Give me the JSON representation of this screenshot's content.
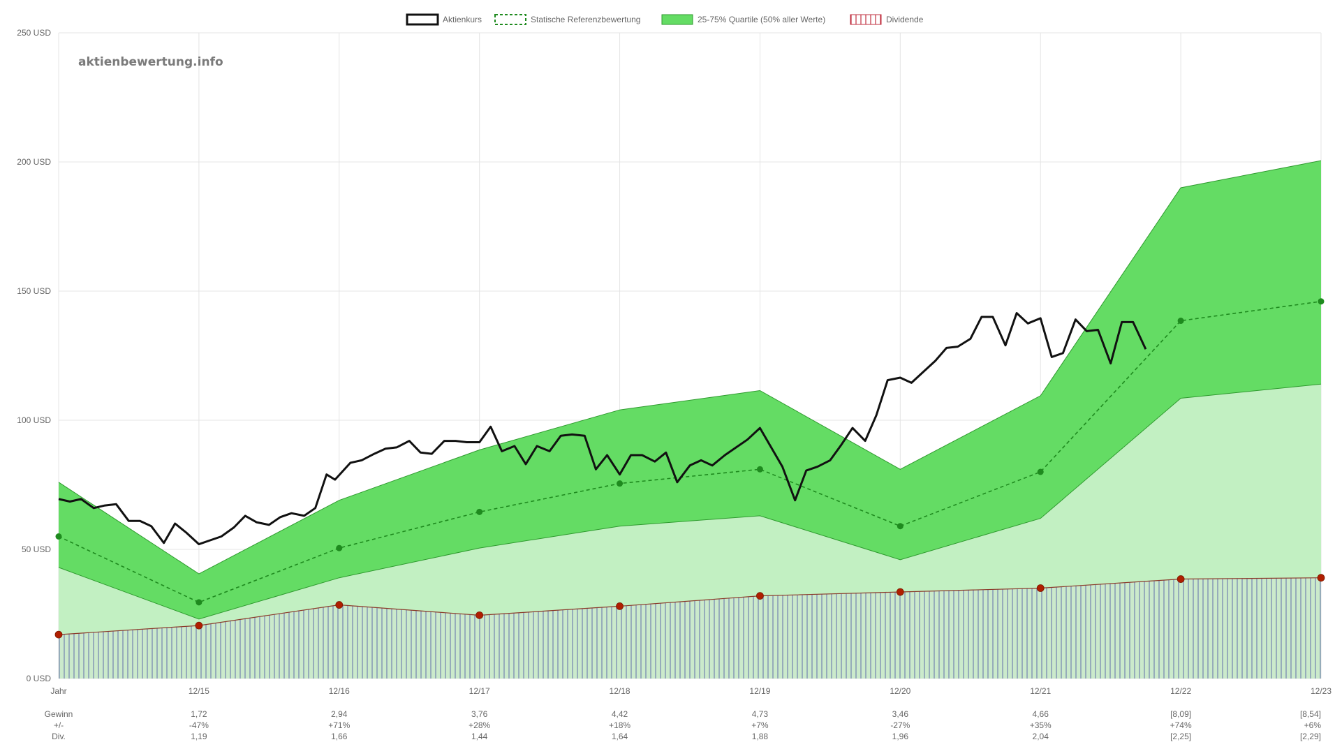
{
  "watermark": "aktienbewertung.info",
  "legend": {
    "price": "Aktienkurs",
    "reference": "Statische Referenzbewertung",
    "quartile": "25-75% Quartile (50% aller Werte)",
    "dividend": "Dividende"
  },
  "colors": {
    "price": "#111111",
    "reference": "#1e8a1e",
    "quartile_fill": "#64dc64",
    "quartile_line": "#2e9a2e",
    "lower_fill": "#c2f0c2",
    "dividend_fill": "#cbeacb",
    "dividend_stripe": "#7a8ab0",
    "dividend_line": "#8a3a2a",
    "dividend_point": "#b01e00",
    "grid": "#e4e4e4"
  },
  "chart_data": {
    "type": "line",
    "ylim": [
      0,
      250
    ],
    "yticks": [
      0,
      50,
      100,
      150,
      200,
      250
    ],
    "ytick_labels": [
      "0 USD",
      "50 USD",
      "100 USD",
      "150 USD",
      "200 USD",
      "250 USD"
    ],
    "categories": [
      "Jahr",
      "12/15",
      "12/16",
      "12/17",
      "12/18",
      "12/19",
      "12/20",
      "12/21",
      "12/22",
      "12/23"
    ],
    "reference": [
      55,
      29.5,
      50.5,
      64.5,
      75.5,
      81,
      59,
      80,
      138.5,
      146
    ],
    "quartile_upper": [
      76,
      40.5,
      69,
      88.5,
      104,
      111.5,
      81,
      109.5,
      190,
      200.5
    ],
    "quartile_lower": [
      43,
      23,
      39,
      50.5,
      59,
      63,
      46,
      62,
      108.5,
      114
    ],
    "dividend": [
      17,
      20.5,
      28.5,
      24.5,
      28,
      32,
      33.5,
      35,
      38.5,
      39
    ],
    "price": [
      [
        0,
        69.5
      ],
      [
        0.08,
        68.5
      ],
      [
        0.16,
        69.5
      ],
      [
        0.25,
        66
      ],
      [
        0.33,
        67
      ],
      [
        0.41,
        67.5
      ],
      [
        0.5,
        61
      ],
      [
        0.58,
        61
      ],
      [
        0.66,
        59
      ],
      [
        0.75,
        52.5
      ],
      [
        0.83,
        60
      ],
      [
        0.91,
        56.5
      ],
      [
        1,
        52
      ],
      [
        1.08,
        53.5
      ],
      [
        1.16,
        55
      ],
      [
        1.25,
        58.5
      ],
      [
        1.33,
        63
      ],
      [
        1.41,
        60.5
      ],
      [
        1.5,
        59.5
      ],
      [
        1.58,
        62.5
      ],
      [
        1.66,
        64
      ],
      [
        1.75,
        63
      ],
      [
        1.83,
        66
      ],
      [
        1.91,
        79
      ],
      [
        1.97,
        77
      ],
      [
        2.08,
        83.5
      ],
      [
        2.16,
        84.5
      ],
      [
        2.25,
        87
      ],
      [
        2.33,
        89
      ],
      [
        2.41,
        89.5
      ],
      [
        2.5,
        92
      ],
      [
        2.58,
        87.5
      ],
      [
        2.66,
        87
      ],
      [
        2.75,
        92
      ],
      [
        2.83,
        92
      ],
      [
        2.91,
        91.5
      ],
      [
        3,
        91.5
      ],
      [
        3.08,
        97.5
      ],
      [
        3.16,
        88
      ],
      [
        3.25,
        90
      ],
      [
        3.33,
        83
      ],
      [
        3.41,
        90
      ],
      [
        3.5,
        88
      ],
      [
        3.58,
        94
      ],
      [
        3.66,
        94.5
      ],
      [
        3.75,
        94
      ],
      [
        3.83,
        81
      ],
      [
        3.91,
        86.5
      ],
      [
        4,
        79
      ],
      [
        4.08,
        86.5
      ],
      [
        4.16,
        86.5
      ],
      [
        4.25,
        84
      ],
      [
        4.33,
        87.5
      ],
      [
        4.41,
        76
      ],
      [
        4.5,
        82.5
      ],
      [
        4.58,
        84.5
      ],
      [
        4.66,
        82.5
      ],
      [
        4.75,
        86.5
      ],
      [
        4.83,
        89.5
      ],
      [
        4.91,
        92.5
      ],
      [
        5,
        97
      ],
      [
        5.08,
        89.5
      ],
      [
        5.16,
        82
      ],
      [
        5.25,
        69
      ],
      [
        5.33,
        80.5
      ],
      [
        5.41,
        82
      ],
      [
        5.5,
        84.5
      ],
      [
        5.58,
        90.5
      ],
      [
        5.66,
        97
      ],
      [
        5.75,
        92
      ],
      [
        5.83,
        102
      ],
      [
        5.91,
        115.5
      ],
      [
        6,
        116.5
      ],
      [
        6.08,
        114.5
      ],
      [
        6.16,
        118.5
      ],
      [
        6.25,
        123
      ],
      [
        6.33,
        128
      ],
      [
        6.41,
        128.5
      ],
      [
        6.5,
        131.5
      ],
      [
        6.58,
        140
      ],
      [
        6.66,
        140
      ],
      [
        6.75,
        129
      ],
      [
        6.83,
        141.5
      ],
      [
        6.91,
        137.5
      ],
      [
        7,
        139.5
      ],
      [
        7.08,
        124.5
      ],
      [
        7.16,
        126
      ],
      [
        7.25,
        139
      ],
      [
        7.33,
        134.5
      ],
      [
        7.41,
        135
      ],
      [
        7.5,
        122
      ],
      [
        7.58,
        138
      ],
      [
        7.66,
        138
      ],
      [
        7.75,
        127.5
      ]
    ],
    "rows": [
      {
        "label": "Gewinn",
        "values": [
          "",
          "1,72",
          "2,94",
          "3,76",
          "4,42",
          "4,73",
          "3,46",
          "4,66",
          "[8,09]",
          "[8,54]"
        ]
      },
      {
        "label": "+/-",
        "values": [
          "",
          "-47%",
          "+71%",
          "+28%",
          "+18%",
          "+7%",
          "-27%",
          "+35%",
          "+74%",
          "+6%"
        ]
      },
      {
        "label": "Div.",
        "values": [
          "",
          "1,19",
          "1,66",
          "1,44",
          "1,64",
          "1,88",
          "1,96",
          "2,04",
          "[2,25]",
          "[2,29]"
        ]
      }
    ],
    "grid": true,
    "legend_position": "top-center"
  }
}
